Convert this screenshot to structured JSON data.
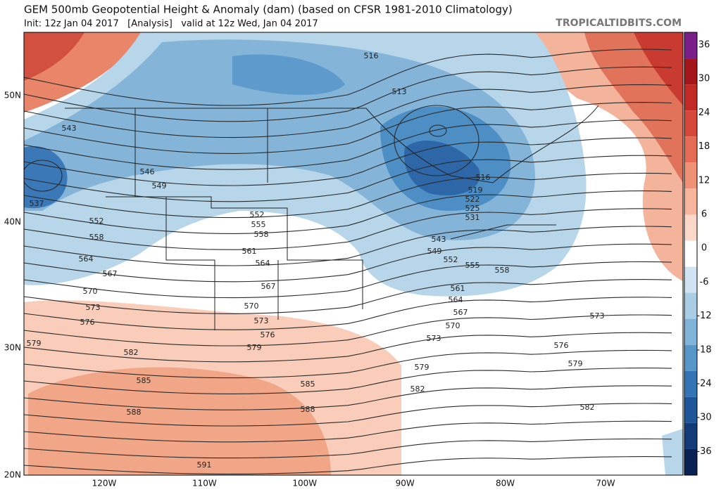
{
  "header": {
    "title": "GEM 500mb Geopotential Height & Anomaly (dam) (based on CFSR 1981-2010 Climatology)",
    "subtitle": "Init: 12z Jan 04 2017   [Analysis]   valid at 12z Wed, Jan 04 2017",
    "brand": "TROPICALTIDBITS.COM"
  },
  "colorbar": {
    "ticks": [
      36,
      30,
      24,
      18,
      12,
      6,
      0,
      -6,
      -12,
      -18,
      -24,
      -30,
      -36
    ]
  },
  "latitude_labels": [
    "50N",
    "40N",
    "30N",
    "20N"
  ],
  "longitude_labels": [
    "120W",
    "110W",
    "100W",
    "90W",
    "80W",
    "70W"
  ],
  "contour_labels": [
    "516",
    "513",
    "543",
    "546",
    "549",
    "537",
    "552",
    "558",
    "552",
    "555",
    "558",
    "561",
    "564",
    "567",
    "570",
    "573",
    "576",
    "579",
    "564",
    "567",
    "570",
    "573",
    "576",
    "579",
    "582",
    "585",
    "588",
    "591",
    "585",
    "588",
    "516",
    "519",
    "522",
    "525",
    "531",
    "543",
    "549",
    "552",
    "555",
    "558",
    "561",
    "564",
    "567",
    "570",
    "573",
    "576",
    "579",
    "579",
    "582",
    "582",
    "573"
  ]
}
